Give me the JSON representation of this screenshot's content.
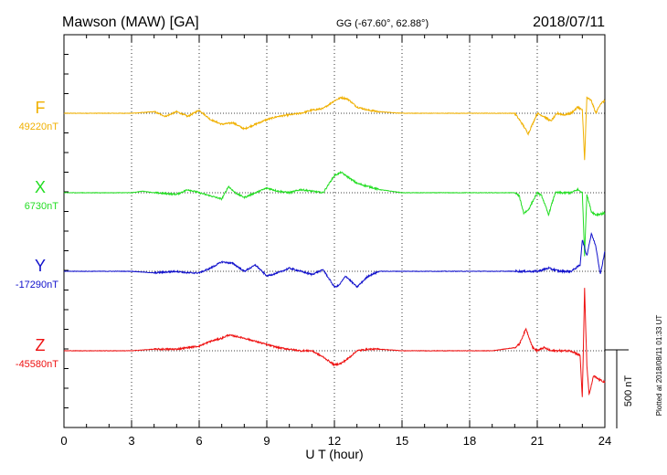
{
  "header": {
    "station": "Mawson (MAW)  [GA]",
    "coords": "GG (-67.60°,  62.88°)",
    "date": "2018/07/11"
  },
  "side_note": "Plotted at 2018/08/11 01:33 UT",
  "scale_label": "500 nT",
  "chart_data": {
    "type": "line",
    "xlabel": "U T (hour)",
    "xlim": [
      0,
      24
    ],
    "xticks": [
      "0",
      "3",
      "6",
      "9",
      "12",
      "15",
      "18",
      "21",
      "24"
    ],
    "grid": true,
    "scale_bar_nT": 500,
    "series": [
      {
        "name": "F",
        "baseline": "49220nT",
        "baseline_value": 49220,
        "color": "#f0b000",
        "x": [
          0,
          3,
          4,
          4.5,
          5,
          5.5,
          6,
          6.5,
          7,
          7.5,
          8,
          8.5,
          9,
          9.5,
          10,
          10.5,
          11,
          11.5,
          12,
          12.3,
          12.6,
          13,
          13.5,
          14,
          15,
          16,
          17,
          18,
          19,
          20,
          20.3,
          20.6,
          21,
          21.3,
          21.6,
          21.9,
          22.2,
          22.5,
          22.8,
          23,
          23.1,
          23.2,
          23.4,
          23.6,
          23.8,
          24
        ],
        "values": [
          0,
          0,
          10,
          -20,
          10,
          -20,
          20,
          -40,
          -70,
          -60,
          -100,
          -70,
          -40,
          -20,
          -10,
          0,
          20,
          30,
          80,
          100,
          90,
          40,
          20,
          10,
          0,
          0,
          0,
          0,
          0,
          0,
          -60,
          -130,
          0,
          -20,
          -50,
          0,
          -10,
          0,
          40,
          20,
          -300,
          100,
          80,
          0,
          60,
          80
        ]
      },
      {
        "name": "X",
        "baseline": "6730nT",
        "baseline_value": 6730,
        "color": "#22dd22",
        "x": [
          0,
          3,
          3.5,
          4,
          5,
          5.5,
          6,
          6.5,
          7,
          7.3,
          7.6,
          8,
          8.5,
          9,
          9.5,
          10,
          10.5,
          11,
          11.5,
          12,
          12.3,
          12.6,
          13,
          13.5,
          14,
          15,
          17,
          19,
          20,
          20.2,
          20.4,
          20.6,
          21,
          21.2,
          21.5,
          21.8,
          22.5,
          22.8,
          23,
          23.1,
          23.2,
          23.4,
          23.6,
          24
        ],
        "values": [
          0,
          0,
          10,
          0,
          -10,
          20,
          0,
          -20,
          -40,
          40,
          0,
          -30,
          0,
          30,
          10,
          0,
          20,
          10,
          0,
          110,
          130,
          100,
          60,
          40,
          20,
          0,
          0,
          0,
          0,
          -20,
          -130,
          -110,
          0,
          -20,
          -140,
          0,
          0,
          20,
          0,
          -400,
          -10,
          -120,
          -140,
          -130
        ]
      },
      {
        "name": "Y",
        "baseline": "-17290nT",
        "baseline_value": -17290,
        "color": "#1111cc",
        "x": [
          0,
          3,
          4,
          5,
          5.5,
          6,
          6.5,
          7,
          7.5,
          8,
          8.5,
          9,
          9.5,
          10,
          10.5,
          11,
          11.5,
          12,
          12.2,
          12.5,
          13,
          13.5,
          14,
          15,
          16,
          17,
          18,
          19,
          20,
          21,
          21.5,
          22,
          22.5,
          22.9,
          23,
          23.2,
          23.4,
          23.6,
          23.8,
          24
        ],
        "values": [
          0,
          0,
          -10,
          0,
          -10,
          -10,
          20,
          60,
          50,
          0,
          40,
          -30,
          -10,
          20,
          0,
          -20,
          10,
          -100,
          -90,
          -30,
          -100,
          -30,
          0,
          0,
          0,
          0,
          0,
          0,
          0,
          0,
          20,
          0,
          0,
          40,
          200,
          100,
          240,
          160,
          -20,
          130
        ]
      },
      {
        "name": "Z",
        "baseline": "-45580nT",
        "baseline_value": -45580,
        "color": "#ee1111",
        "x": [
          0,
          3,
          4,
          5,
          5.5,
          6,
          6.5,
          7,
          7.3,
          7.7,
          8,
          8.5,
          9,
          9.5,
          10,
          10.5,
          11,
          11.5,
          12,
          12.3,
          12.6,
          13,
          13.5,
          14,
          15,
          16,
          17,
          18,
          19,
          20,
          20.2,
          20.5,
          20.8,
          21,
          21.3,
          21.6,
          22,
          22.5,
          22.9,
          23,
          23.1,
          23.2,
          23.3,
          23.5,
          23.7,
          24
        ],
        "values": [
          0,
          0,
          10,
          10,
          20,
          30,
          60,
          80,
          100,
          90,
          80,
          60,
          40,
          20,
          10,
          0,
          0,
          -40,
          -90,
          -80,
          -50,
          0,
          10,
          10,
          0,
          0,
          0,
          0,
          0,
          20,
          40,
          140,
          20,
          0,
          20,
          0,
          0,
          0,
          -30,
          -300,
          400,
          -90,
          -280,
          -160,
          -180,
          -200
        ]
      }
    ]
  }
}
